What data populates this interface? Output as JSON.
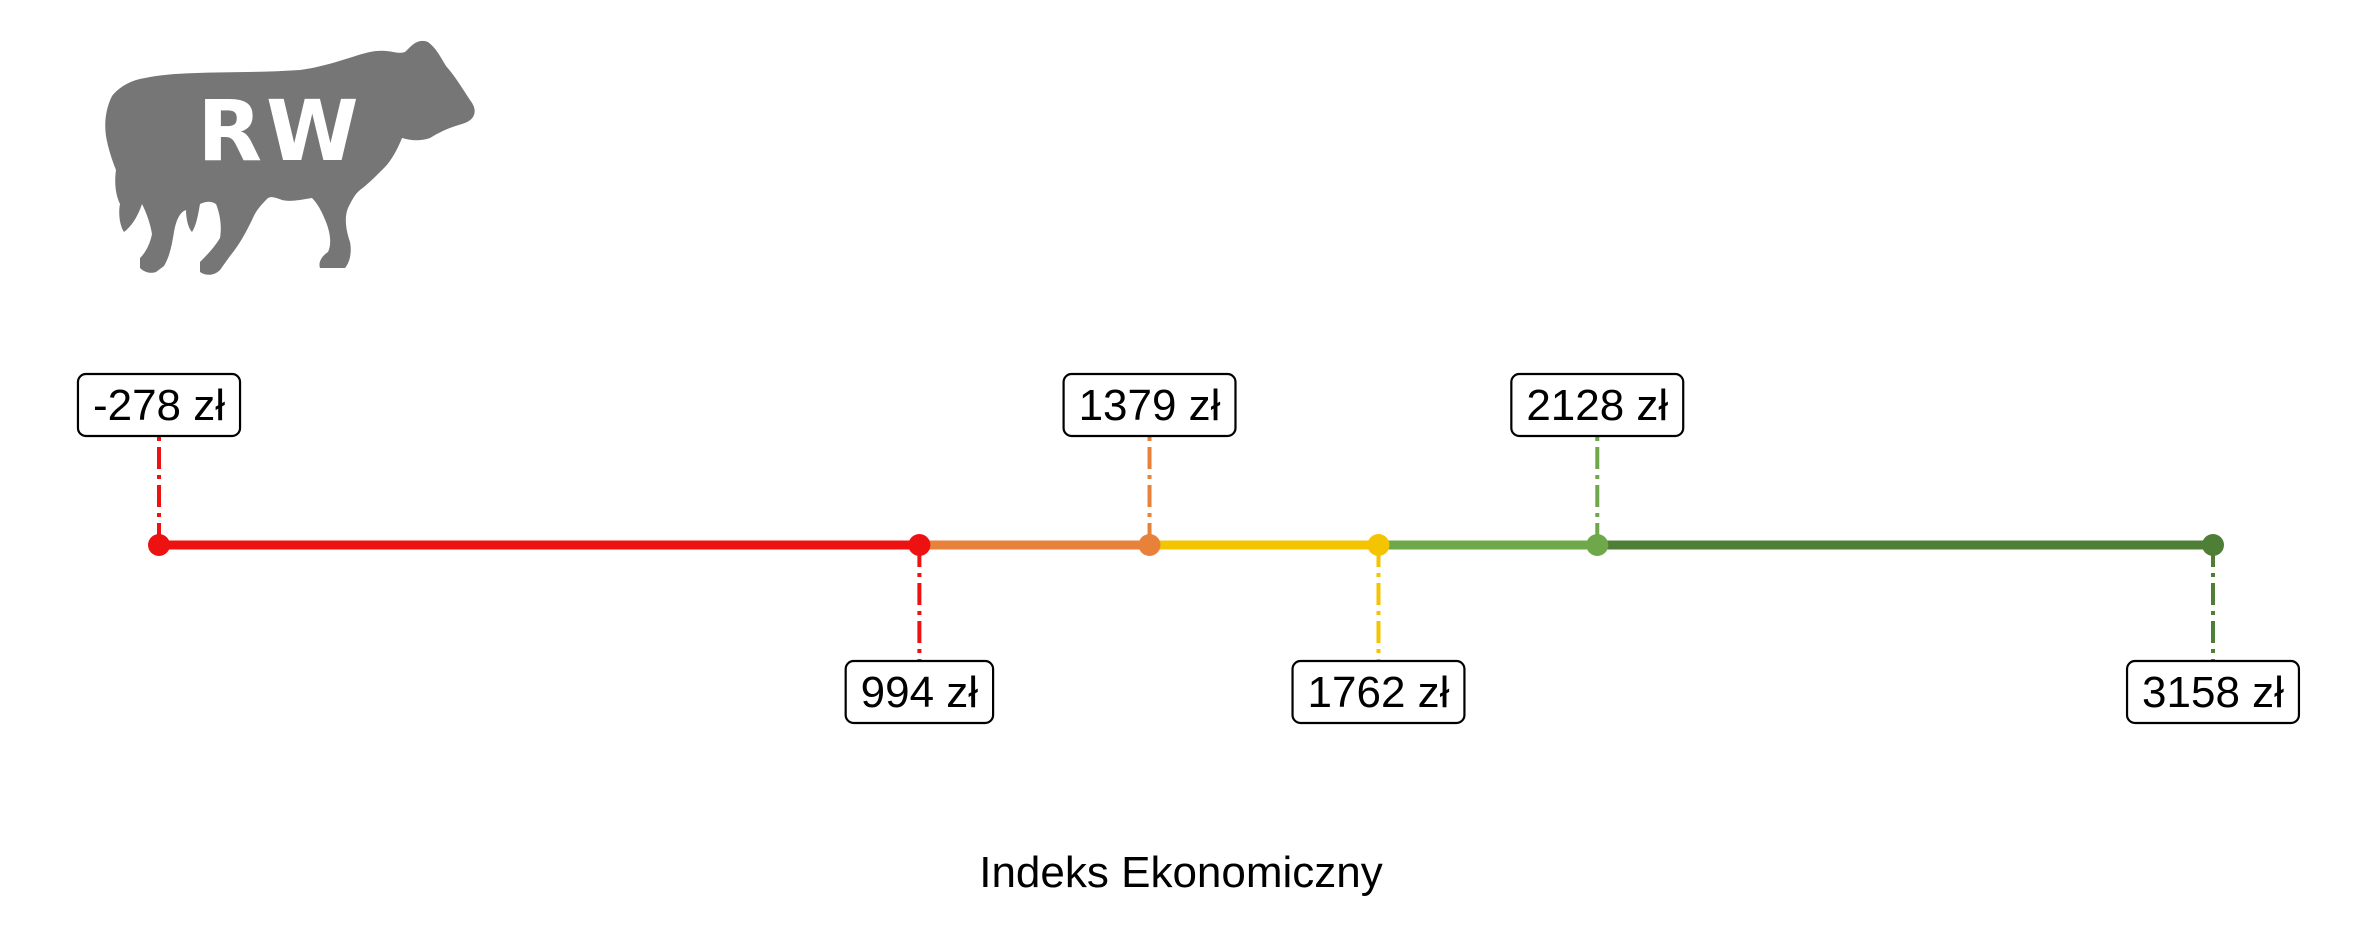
{
  "logo": {
    "text": "RW",
    "icon": "cow-silhouette-icon",
    "color": "#767676"
  },
  "chart_data": {
    "type": "line",
    "xlabel": "Indeks Ekonomiczny",
    "ylabel": "",
    "unit": "zł",
    "xlim": [
      -278,
      3158
    ],
    "grid": false,
    "points": [
      {
        "value": -278,
        "label": "-278 zł",
        "color": "#ee1111",
        "label_pos": "above"
      },
      {
        "value": 994,
        "label": "994 zł",
        "color": "#ee1111",
        "label_pos": "below"
      },
      {
        "value": 1379,
        "label": "1379 zł",
        "color": "#e8823a",
        "label_pos": "above"
      },
      {
        "value": 1762,
        "label": "1762 zł",
        "color": "#f5c400",
        "label_pos": "below"
      },
      {
        "value": 2128,
        "label": "2128 zł",
        "color": "#6fa84a",
        "label_pos": "above"
      },
      {
        "value": 3158,
        "label": "3158 zł",
        "color": "#4f7f37",
        "label_pos": "below"
      }
    ],
    "segments": [
      {
        "from": -278,
        "to": 994,
        "color": "#ee1111"
      },
      {
        "from": 994,
        "to": 1379,
        "color": "#e8823a"
      },
      {
        "from": 1379,
        "to": 1762,
        "color": "#f5c400"
      },
      {
        "from": 1762,
        "to": 2128,
        "color": "#6fa84a"
      },
      {
        "from": 2128,
        "to": 3158,
        "color": "#4f7f37"
      }
    ]
  }
}
